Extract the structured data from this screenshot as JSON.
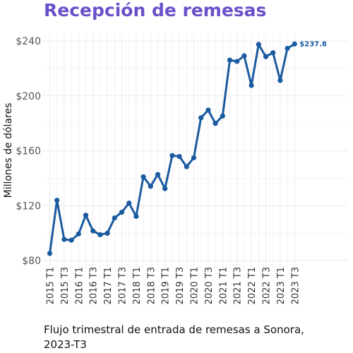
{
  "title": "Recepción de remesas",
  "caption": "Flujo trimestral de entrada de remesas a Sonora, 2023-T3",
  "colors": {
    "title": "#6a51c9",
    "line": "#1a5aa0",
    "grid": "#ebebeb"
  },
  "chart_data": {
    "type": "line",
    "title": "Recepción de remesas",
    "ylabel": "Millones de dólares",
    "xlabel": "",
    "ylim": [
      80,
      240
    ],
    "yticks": [
      80,
      120,
      160,
      200,
      240
    ],
    "ytick_labels": [
      "$80",
      "$120",
      "$160",
      "$200",
      "$240"
    ],
    "grid": true,
    "x": [
      "2015 T1",
      "2015 T2",
      "2015 T3",
      "2015 T4",
      "2016 T1",
      "2016 T2",
      "2016 T3",
      "2016 T4",
      "2017 T1",
      "2017 T2",
      "2017 T3",
      "2017 T4",
      "2018 T1",
      "2018 T2",
      "2018 T3",
      "2018 T4",
      "2019 T1",
      "2019 T2",
      "2019 T3",
      "2019 T4",
      "2020 T1",
      "2020 T2",
      "2020 T3",
      "2020 T4",
      "2021 T1",
      "2021 T2",
      "2021 T3",
      "2021 T4",
      "2022 T1",
      "2022 T2",
      "2022 T3",
      "2022 T4",
      "2023 T1",
      "2023 T2",
      "2023 T3"
    ],
    "xtick_labels": [
      "2015 T1",
      "2015 T3",
      "2016 T1",
      "2016 T3",
      "2017 T1",
      "2017 T3",
      "2018 T1",
      "2018 T3",
      "2019 T1",
      "2019 T3",
      "2020 T1",
      "2020 T3",
      "2021 T1",
      "2021 T3",
      "2022 T1",
      "2022 T3",
      "2023 T1",
      "2023 T3"
    ],
    "series": [
      {
        "values": [
          85.2,
          123.9,
          95.4,
          94.8,
          99.4,
          113.0,
          101.6,
          98.8,
          99.9,
          111.0,
          115.2,
          121.8,
          112.2,
          141.0,
          134.1,
          142.7,
          132.4,
          156.5,
          155.8,
          148.4,
          154.9,
          184.0,
          189.6,
          179.9,
          185.3,
          226.0,
          225.1,
          229.2,
          207.6,
          237.5,
          228.6,
          231.4,
          211.2,
          234.6,
          237.8
        ]
      }
    ],
    "end_label": "$237.8"
  }
}
